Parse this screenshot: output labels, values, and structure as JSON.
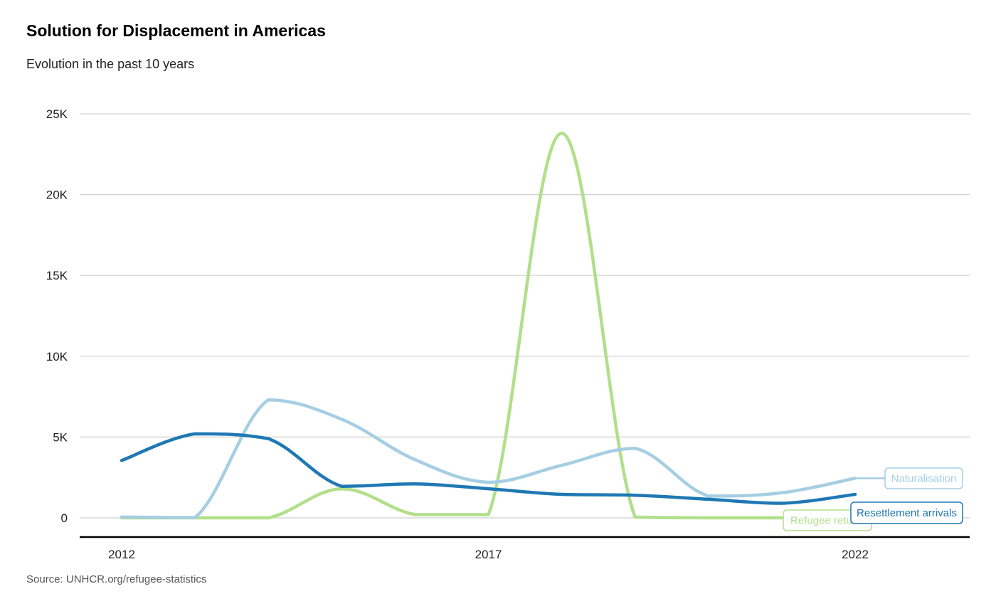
{
  "title": "Solution for Displacement in Americas",
  "subtitle": "Evolution in the past 10 years",
  "source": "Source: UNHCR.org/refugee-statistics",
  "chart_data": {
    "type": "line",
    "x_ticks": [
      "2012",
      "2017",
      "2022"
    ],
    "y_ticks": [
      {
        "value": 0,
        "label": "0"
      },
      {
        "value": 5000,
        "label": "5K"
      },
      {
        "value": 10000,
        "label": "10K"
      },
      {
        "value": 15000,
        "label": "15K"
      },
      {
        "value": 20000,
        "label": "20K"
      },
      {
        "value": 25000,
        "label": "25K"
      }
    ],
    "xlim": [
      2012,
      2022
    ],
    "ylim": [
      0,
      25000
    ],
    "grid": true,
    "legend": "direct labels at line ends",
    "series": [
      {
        "name": "Naturalisation",
        "color": "#a6cee3",
        "x": [
          2012,
          2013,
          2014,
          2015,
          2016,
          2017,
          2018,
          2019,
          2020,
          2021,
          2022
        ],
        "y": [
          50,
          20,
          7300,
          6100,
          3600,
          2200,
          3250,
          4300,
          1350,
          1550,
          2450
        ]
      },
      {
        "name": "Resettlement arrivals",
        "color": "#1f78b4",
        "x": [
          2012,
          2013,
          2014,
          2015,
          2016,
          2017,
          2018,
          2019,
          2020,
          2021,
          2022
        ],
        "y": [
          3550,
          5200,
          4900,
          1950,
          2100,
          1800,
          1450,
          1400,
          1150,
          900,
          1450
        ]
      },
      {
        "name": "Refugee returns",
        "display_label": "Refugee retu",
        "color": "#b2df8a",
        "x": [
          2012,
          2013,
          2014,
          2015,
          2016,
          2017,
          2018,
          2019,
          2020,
          2021
        ],
        "y": [
          0,
          0,
          0,
          1800,
          200,
          200,
          23800,
          50,
          0,
          0
        ]
      }
    ]
  }
}
